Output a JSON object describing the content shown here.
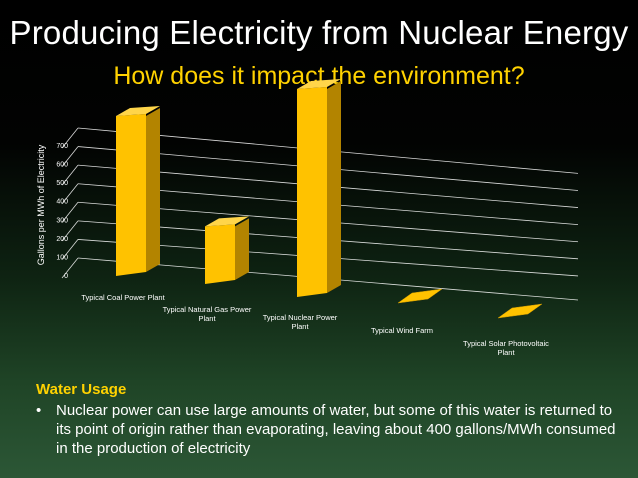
{
  "slide": {
    "title": "Producing Electricity from Nuclear Energy",
    "subtitle": "How does it impact the environment?",
    "section_heading": "Water Usage",
    "bullet_text": "Nuclear power can use large amounts of water, but some of this water is returned to its point of origin rather than evaporating, leaving about 400 gallons/MWh consumed in the production of electricity",
    "bullet_char": "•"
  },
  "chart_data": {
    "type": "bar",
    "title": "",
    "xlabel": "",
    "ylabel": "Gallons per MWh of Electricity",
    "ylim": [
      0,
      700
    ],
    "yticks": [
      "0",
      "100",
      "200",
      "300",
      "400",
      "500",
      "600",
      "700"
    ],
    "categories": [
      [
        "Typical Coal Power Plant"
      ],
      [
        "Typical Natural Gas Power",
        "Plant"
      ],
      [
        "Typical Nuclear Power",
        "Plant"
      ],
      [
        "Typical Wind Farm"
      ],
      [
        "Typical Solar Photovoltaic",
        "Plant"
      ]
    ],
    "values": [
      500,
      180,
      650,
      0,
      0
    ],
    "colors": {
      "bar_front": "#ffc200",
      "bar_side": "#b38400",
      "bar_top": "#ffd54a",
      "grid": "#ffffff",
      "text": "#ffffff"
    }
  }
}
